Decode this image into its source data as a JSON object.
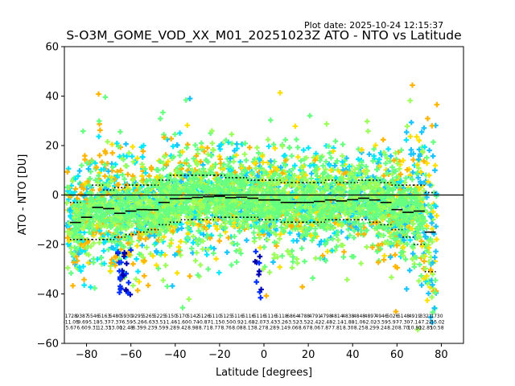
{
  "plot_date": "Plot date: 2025-10-24 12:15:37",
  "chart_data": {
    "type": "scatter",
    "title": "S-O3M_GOME_VOD_XX_M01_20251023Z ATO - NTO vs Latitude",
    "xlabel": "Latitude [degrees]",
    "ylabel": "ATO - NTO [DU]",
    "xlim": [
      -90,
      90
    ],
    "ylim": [
      -60,
      60
    ],
    "xticks": [
      -80,
      -60,
      -40,
      -20,
      0,
      20,
      40,
      60,
      80
    ],
    "yticks": [
      -60,
      -40,
      -20,
      0,
      20,
      40,
      60
    ],
    "grid": false,
    "zero_line": 0,
    "colors": {
      "green": "#66ff80",
      "lightgreen": "#9cff5a",
      "cyan": "#00e8ff",
      "lightblue": "#19c3ff",
      "yellow": "#ffe000",
      "orange": "#ffb400",
      "blue": "#0030ff",
      "navy": "#0000b0"
    },
    "mean_bins": {
      "x": [
        -85,
        -80,
        -75,
        -70,
        -65,
        -60,
        -55,
        -50,
        -45,
        -40,
        -35,
        -30,
        -25,
        -20,
        -15,
        -10,
        -5,
        0,
        5,
        10,
        15,
        20,
        25,
        30,
        35,
        40,
        45,
        50,
        55,
        60,
        65,
        70,
        75
      ],
      "mean": [
        -11.1,
        -9.0,
        -5.0,
        -5.5,
        -7.4,
        -6.5,
        -5.9,
        -6.0,
        -3.0,
        -1.5,
        -1.4,
        -1.0,
        -0.7,
        -0.5,
        -1.1,
        -0.9,
        -1.3,
        -2.0,
        -2.0,
        -3.0,
        -3.0,
        -3.0,
        -2.6,
        -2.0,
        -2.4,
        -1.9,
        -1.3,
        -2.0,
        -3.0,
        -5.9,
        -7.0,
        -6.5,
        -15.0
      ],
      "upper": [
        -3,
        0,
        4,
        2,
        3,
        4,
        4,
        4,
        6,
        8,
        8,
        8,
        8,
        8,
        7,
        7,
        6,
        6,
        6,
        5,
        5,
        5,
        5,
        6,
        5,
        5,
        6,
        6,
        5,
        4,
        4,
        4,
        1
      ],
      "lower": [
        -18,
        -18,
        -18,
        -18,
        -17,
        -16,
        -15,
        -14,
        -12,
        -11,
        -10,
        -10,
        -10,
        -9,
        -9,
        -9,
        -9,
        -10,
        -10,
        -11,
        -11,
        -11,
        -11,
        -10,
        -10,
        -10,
        -10,
        -11,
        -12,
        -14,
        -17,
        -20,
        -31
      ]
    },
    "bin_stats": [
      {
        "x": -87,
        "count": "1728",
        "mean": "-11.05",
        "std": "5.67"
      },
      {
        "x": -82,
        "count": "9387",
        "mean": "-9.69",
        "std": "6.60"
      },
      {
        "x": -77,
        "count": "5546",
        "mean": "-5.18",
        "std": "9.31"
      },
      {
        "x": -72,
        "count": "5163",
        "mean": "-5.37",
        "std": "12.33"
      },
      {
        "x": -67,
        "count": "5480",
        "mean": "-7.37",
        "std": "13.00"
      },
      {
        "x": -62,
        "count": "5930",
        "mean": "-6.59",
        "std": "12.48"
      },
      {
        "x": -57,
        "count": "9295",
        "mean": "-5.26",
        "std": "8.39"
      },
      {
        "x": -52,
        "count": "5265",
        "mean": "-6.63",
        "std": "9.23"
      },
      {
        "x": -47,
        "count": "5225",
        "mean": "-3.51",
        "std": "9.59"
      },
      {
        "x": -42,
        "count": "5150",
        "mean": "-1.46",
        "std": "9.28"
      },
      {
        "x": -37,
        "count": "5170",
        "mean": "-1.60",
        "std": "9.42"
      },
      {
        "x": -32,
        "count": "5142",
        "mean": "-0.74",
        "std": "8.98"
      },
      {
        "x": -27,
        "count": "5126",
        "mean": "-0.87",
        "std": "8.71"
      },
      {
        "x": -22,
        "count": "5110",
        "mean": "-1.15",
        "std": "8.77"
      },
      {
        "x": -17,
        "count": "5125",
        "mean": "-0.50",
        "std": "8.76"
      },
      {
        "x": -12,
        "count": "5116",
        "mean": "-0.92",
        "std": "8.08"
      },
      {
        "x": -7,
        "count": "5116",
        "mean": "-1.68",
        "std": "8.13"
      },
      {
        "x": -2,
        "count": "5116",
        "mean": "-2.07",
        "std": "8.27"
      },
      {
        "x": 3,
        "count": "5116",
        "mean": "-3.43",
        "std": "8.28"
      },
      {
        "x": 8,
        "count": "5118",
        "mean": "-3.26",
        "std": "9.14"
      },
      {
        "x": 13,
        "count": "6864",
        "mean": "-3.52",
        "std": "9.06"
      },
      {
        "x": 18,
        "count": "4788",
        "mean": "-3.52",
        "std": "8.67"
      },
      {
        "x": 23,
        "count": "4791",
        "mean": "-2.42",
        "std": "8.06"
      },
      {
        "x": 28,
        "count": "4798",
        "mean": "-2.48",
        "std": "7.87"
      },
      {
        "x": 33,
        "count": "4814",
        "mean": "-2.14",
        "std": "7.81"
      },
      {
        "x": 38,
        "count": "4838",
        "mean": "-1.88",
        "std": "8.30"
      },
      {
        "x": 43,
        "count": "4848",
        "mean": "-1.06",
        "std": "8.25"
      },
      {
        "x": 48,
        "count": "4897",
        "mean": "-2.02",
        "std": "8.29"
      },
      {
        "x": 53,
        "count": "4946",
        "mean": "-3.59",
        "std": "9.24"
      },
      {
        "x": 58,
        "count": "5026",
        "mean": "-5.97",
        "std": "8.20"
      },
      {
        "x": 63,
        "count": "5148",
        "mean": "-7.30",
        "std": "8.70"
      },
      {
        "x": 68,
        "count": "4919",
        "mean": "-7.14",
        "std": "10.80"
      },
      {
        "x": 73,
        "count": "3321",
        "mean": "-7.22",
        "std": "12.85"
      },
      {
        "x": 78,
        "count": "1730",
        "mean": "-15.02",
        "std": "10.58"
      }
    ]
  }
}
